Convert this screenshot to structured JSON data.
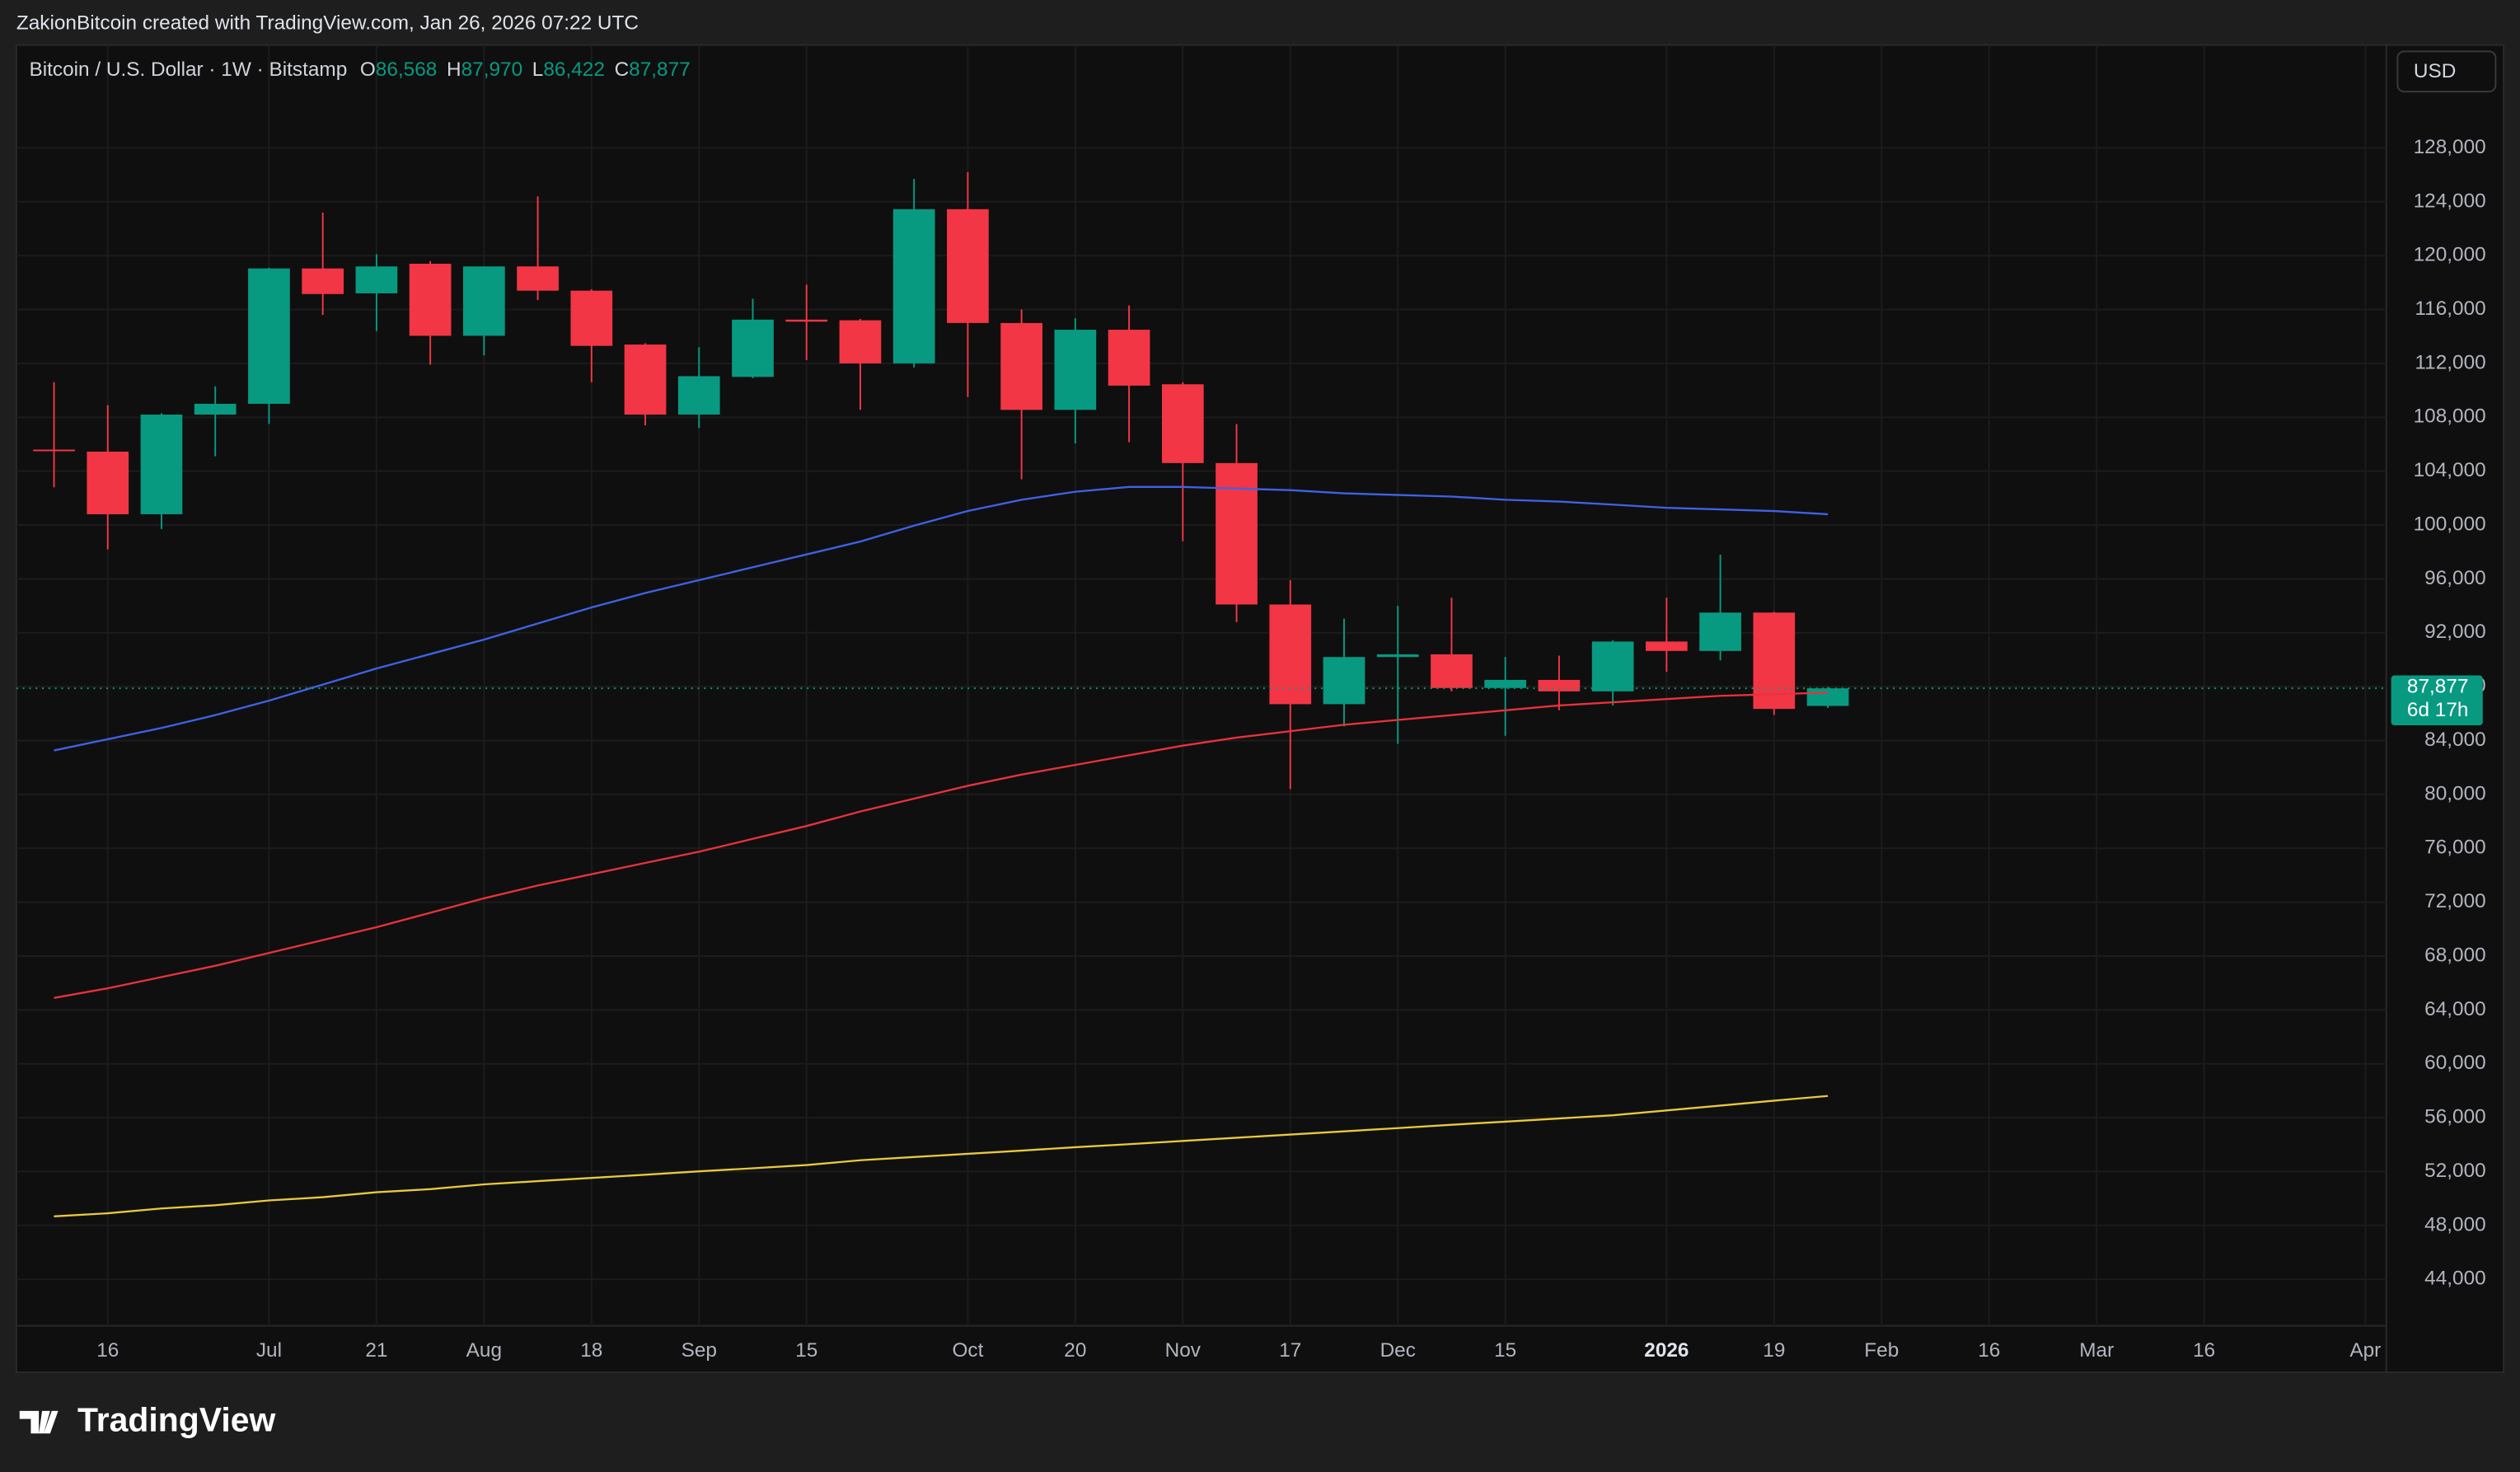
{
  "header": {
    "credit": "ZakionBitcoin created with TradingView.com, Jan 26, 2026 07:22 UTC"
  },
  "chart_data": {
    "type": "candlestick",
    "title": "Bitcoin / U.S. Dollar · 1W · Bitstamp",
    "ohlc_legend": [
      {
        "key": "O",
        "label": "86,568"
      },
      {
        "key": "H",
        "label": "87,970"
      },
      {
        "key": "L",
        "label": "86,422"
      },
      {
        "key": "C",
        "label": "87,877"
      }
    ],
    "currency": "USD",
    "last_price_label": "87,877",
    "countdown": "6d 17h",
    "x": [
      0,
      1,
      2,
      3,
      4,
      5,
      6,
      7,
      8,
      9,
      10,
      11,
      12,
      13,
      14,
      15,
      16,
      17,
      18,
      19,
      20,
      21,
      22,
      23,
      24,
      25,
      26,
      27,
      28,
      29,
      30,
      31,
      32,
      33
    ],
    "open": [
      105600,
      105450,
      100800,
      108200,
      109000,
      119050,
      117200,
      119400,
      114050,
      119200,
      117400,
      113400,
      108200,
      111000,
      115250,
      115200,
      112000,
      123450,
      115000,
      108550,
      114500,
      110450,
      104600,
      94100,
      86700,
      90200,
      90400,
      87900,
      88500,
      87650,
      91350,
      90650,
      93500,
      86568
    ],
    "high": [
      110600,
      108900,
      108300,
      110300,
      119100,
      123200,
      120100,
      119600,
      119200,
      124400,
      117500,
      113500,
      113200,
      116800,
      117850,
      115300,
      125700,
      126200,
      116000,
      115350,
      116300,
      110600,
      107500,
      95900,
      93050,
      94000,
      94600,
      90200,
      90300,
      91450,
      94600,
      97800,
      93550,
      87970
    ],
    "low": [
      102800,
      98200,
      99700,
      105100,
      107500,
      115600,
      114400,
      111900,
      112600,
      116700,
      110600,
      107400,
      107200,
      110900,
      112250,
      108550,
      111700,
      109500,
      103400,
      106050,
      106150,
      98800,
      92800,
      80400,
      85050,
      83750,
      87650,
      84350,
      86250,
      86600,
      89100,
      89950,
      85900,
      86422
    ],
    "close": [
      105500,
      100800,
      108200,
      109000,
      119050,
      117150,
      119200,
      114050,
      119200,
      117400,
      113300,
      108200,
      111050,
      115250,
      115100,
      112000,
      123450,
      115000,
      108550,
      114500,
      110350,
      104600,
      94100,
      86700,
      90200,
      90400,
      87900,
      88500,
      87650,
      91350,
      90650,
      93500,
      86350,
      87877
    ],
    "up_color": "#089981",
    "down_color": "#f23645",
    "overlays": [
      {
        "color": "#3f62e6",
        "values": [
          83260,
          84100,
          84930,
          85890,
          86960,
          88150,
          89350,
          90420,
          91490,
          92690,
          93880,
          94950,
          95910,
          96860,
          97820,
          98770,
          99960,
          101040,
          101870,
          102470,
          102830,
          102830,
          102710,
          102590,
          102350,
          102230,
          102110,
          101870,
          101750,
          101520,
          101280,
          101160,
          101040,
          100800
        ]
      },
      {
        "color": "#e8323c",
        "values": [
          64890,
          65610,
          66440,
          67280,
          68230,
          69190,
          70140,
          71210,
          72290,
          73240,
          74080,
          74910,
          75750,
          76700,
          77660,
          78730,
          79680,
          80640,
          81470,
          82190,
          82900,
          83620,
          84220,
          84690,
          85170,
          85530,
          85890,
          86250,
          86600,
          86840,
          87080,
          87320,
          87440,
          87560
        ]
      },
      {
        "color": "#e9c93c",
        "values": [
          48670,
          48900,
          49260,
          49500,
          49860,
          50100,
          50460,
          50690,
          51050,
          51290,
          51530,
          51770,
          52010,
          52240,
          52480,
          52840,
          53080,
          53320,
          53560,
          53800,
          54030,
          54270,
          54510,
          54750,
          54990,
          55230,
          55470,
          55700,
          55940,
          56180,
          56540,
          56900,
          57260,
          57610
        ]
      }
    ],
    "xlim": [
      -0.7,
      43.39
    ],
    "xticks": [
      {
        "value": 1,
        "label": "16"
      },
      {
        "value": 4,
        "label": "Jul"
      },
      {
        "value": 6,
        "label": "21"
      },
      {
        "value": 8,
        "label": "Aug"
      },
      {
        "value": 10,
        "label": "18"
      },
      {
        "value": 12,
        "label": "Sep"
      },
      {
        "value": 14,
        "label": "15"
      },
      {
        "value": 17,
        "label": "Oct"
      },
      {
        "value": 19,
        "label": "20"
      },
      {
        "value": 21,
        "label": "Nov"
      },
      {
        "value": 23,
        "label": "17"
      },
      {
        "value": 25,
        "label": "Dec"
      },
      {
        "value": 27,
        "label": "15"
      },
      {
        "value": 30,
        "label": "2026"
      },
      {
        "value": 32,
        "label": "19"
      },
      {
        "value": 34,
        "label": "Feb"
      },
      {
        "value": 36,
        "label": "16"
      },
      {
        "value": 38,
        "label": "Mar"
      },
      {
        "value": 40,
        "label": "16"
      },
      {
        "value": 43,
        "label": "Apr"
      }
    ],
    "ylim": [
      40550,
      135640
    ],
    "yticks": [
      {
        "value": 44000,
        "label": "44,000"
      },
      {
        "value": 48000,
        "label": "48,000"
      },
      {
        "value": 52000,
        "label": "52,000"
      },
      {
        "value": 56000,
        "label": "56,000"
      },
      {
        "value": 60000,
        "label": "60,000"
      },
      {
        "value": 64000,
        "label": "64,000"
      },
      {
        "value": 68000,
        "label": "68,000"
      },
      {
        "value": 72000,
        "label": "72,000"
      },
      {
        "value": 76000,
        "label": "76,000"
      },
      {
        "value": 80000,
        "label": "80,000"
      },
      {
        "value": 84000,
        "label": "84,000"
      },
      {
        "value": 88000,
        "label": "88,000"
      },
      {
        "value": 92000,
        "label": "92,000"
      },
      {
        "value": 96000,
        "label": "96,000"
      },
      {
        "value": 100000,
        "label": "100,000"
      },
      {
        "value": 104000,
        "label": "104,000"
      },
      {
        "value": 108000,
        "label": "108,000"
      },
      {
        "value": 112000,
        "label": "112,000"
      },
      {
        "value": 116000,
        "label": "116,000"
      },
      {
        "value": 120000,
        "label": "120,000"
      },
      {
        "value": 124000,
        "label": "124,000"
      },
      {
        "value": 128000,
        "label": "128,000"
      }
    ],
    "grid": true
  },
  "footer": {
    "brand": "TradingView"
  }
}
